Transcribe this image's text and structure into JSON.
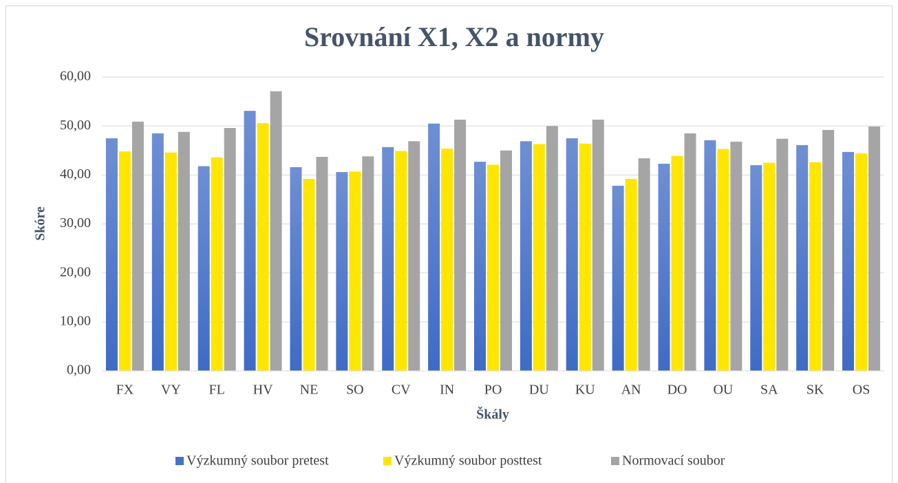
{
  "chart_data": {
    "type": "bar",
    "title": "Srovnání X1, X2 a normy",
    "x_label": "Škály",
    "y_label": "Skóre",
    "categories": [
      "FX",
      "VY",
      "FL",
      "HV",
      "NE",
      "SO",
      "CV",
      "IN",
      "PO",
      "DU",
      "KU",
      "AN",
      "DO",
      "OU",
      "SA",
      "SK",
      "OS"
    ],
    "series": [
      {
        "name": "Výzkumný soubor pretest",
        "color": "#4472c4",
        "values": [
          47.5,
          48.5,
          41.8,
          53.1,
          41.6,
          40.6,
          45.7,
          50.5,
          42.7,
          46.9,
          47.5,
          37.8,
          42.3,
          47.1,
          42.0,
          46.1,
          44.7
        ]
      },
      {
        "name": "Výzkumný soubor posttest",
        "color": "#ffe600",
        "values": [
          44.8,
          44.6,
          43.6,
          50.6,
          39.2,
          40.7,
          44.9,
          45.4,
          42.1,
          46.3,
          46.4,
          39.2,
          43.9,
          45.3,
          42.5,
          42.6,
          44.4
        ]
      },
      {
        "name": "Normovací soubor",
        "color": "#a5a5a5",
        "values": [
          50.9,
          48.8,
          49.6,
          57.1,
          43.7,
          43.8,
          46.9,
          51.3,
          45.0,
          50.0,
          51.3,
          43.4,
          48.5,
          46.8,
          47.4,
          49.2,
          49.9
        ]
      }
    ],
    "ylim": [
      0,
      60
    ],
    "yticks": [
      {
        "value": 0,
        "label": "0,00"
      },
      {
        "value": 10,
        "label": "10,00"
      },
      {
        "value": 20,
        "label": "20,00"
      },
      {
        "value": 30,
        "label": "30,00"
      },
      {
        "value": 40,
        "label": "40,00"
      },
      {
        "value": 50,
        "label": "50,00"
      },
      {
        "value": 60,
        "label": "60,00"
      }
    ],
    "grid": true,
    "legend": "bottom"
  }
}
